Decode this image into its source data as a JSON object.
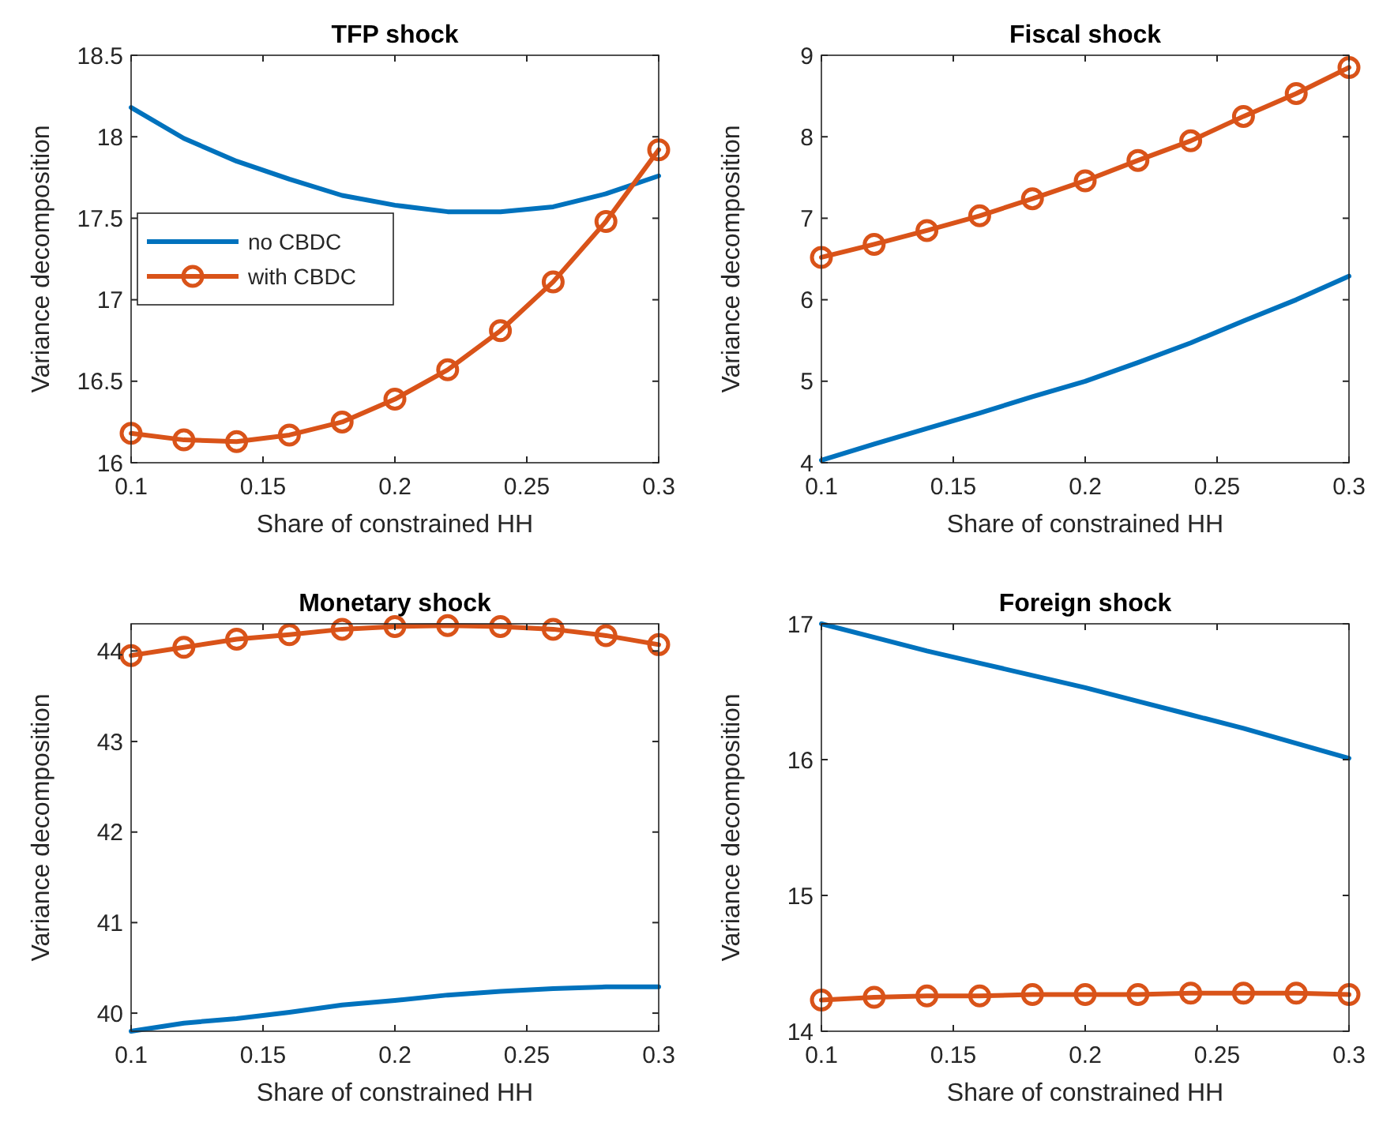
{
  "chart_data": [
    {
      "type": "line",
      "title": "TFP shock",
      "xlabel": "Share of constrained HH",
      "ylabel": "Variance decomposition",
      "x": [
        0.1,
        0.12,
        0.14,
        0.16,
        0.18,
        0.2,
        0.22,
        0.24,
        0.26,
        0.28,
        0.3
      ],
      "xlim": [
        0.1,
        0.3
      ],
      "xticks": [
        0.1,
        0.15,
        0.2,
        0.25,
        0.3
      ],
      "ylim": [
        16,
        18.5
      ],
      "yticks": [
        16,
        16.5,
        17,
        17.5,
        18,
        18.5
      ],
      "legend": "left",
      "series": [
        {
          "name": "no CBDC",
          "color": "#0072bd",
          "marker": "none",
          "values": [
            18.18,
            17.99,
            17.85,
            17.74,
            17.64,
            17.58,
            17.54,
            17.54,
            17.57,
            17.65,
            17.76
          ]
        },
        {
          "name": "with CBDC",
          "color": "#d95319",
          "marker": "circle",
          "values": [
            16.18,
            16.14,
            16.13,
            16.17,
            16.25,
            16.39,
            16.57,
            16.81,
            17.11,
            17.48,
            17.92
          ]
        }
      ]
    },
    {
      "type": "line",
      "title": "Fiscal shock",
      "xlabel": "Share of constrained HH",
      "ylabel": "Variance decomposition",
      "x": [
        0.1,
        0.12,
        0.14,
        0.16,
        0.18,
        0.2,
        0.22,
        0.24,
        0.26,
        0.28,
        0.3
      ],
      "xlim": [
        0.1,
        0.3
      ],
      "xticks": [
        0.1,
        0.15,
        0.2,
        0.25,
        0.3
      ],
      "ylim": [
        4,
        9
      ],
      "yticks": [
        4,
        5,
        6,
        7,
        8,
        9
      ],
      "series": [
        {
          "color": "#0072bd",
          "marker": "none",
          "values": [
            4.03,
            4.23,
            4.42,
            4.61,
            4.81,
            5.0,
            5.23,
            5.47,
            5.74,
            6.0,
            6.29
          ]
        },
        {
          "color": "#d95319",
          "marker": "circle",
          "values": [
            6.52,
            6.68,
            6.85,
            7.03,
            7.24,
            7.46,
            7.71,
            7.95,
            8.25,
            8.53,
            8.85
          ]
        }
      ]
    },
    {
      "type": "line",
      "title": "Monetary shock",
      "xlabel": "Share of constrained HH",
      "ylabel": "Variance decomposition",
      "x": [
        0.1,
        0.12,
        0.14,
        0.16,
        0.18,
        0.2,
        0.22,
        0.24,
        0.26,
        0.28,
        0.3
      ],
      "xlim": [
        0.1,
        0.3
      ],
      "xticks": [
        0.1,
        0.15,
        0.2,
        0.25,
        0.3
      ],
      "ylim": [
        39.8,
        44.3
      ],
      "yticks": [
        40,
        41,
        42,
        43,
        44
      ],
      "series": [
        {
          "color": "#0072bd",
          "marker": "none",
          "values": [
            39.8,
            39.89,
            39.94,
            40.01,
            40.09,
            40.14,
            40.2,
            40.24,
            40.27,
            40.29,
            40.29
          ]
        },
        {
          "color": "#d95319",
          "marker": "circle",
          "values": [
            43.95,
            44.04,
            44.13,
            44.18,
            44.24,
            44.27,
            44.28,
            44.27,
            44.24,
            44.17,
            44.07
          ]
        }
      ]
    },
    {
      "type": "line",
      "title": "Foreign shock",
      "xlabel": "Share of constrained HH",
      "ylabel": "Variance decomposition",
      "x": [
        0.1,
        0.12,
        0.14,
        0.16,
        0.18,
        0.2,
        0.22,
        0.24,
        0.26,
        0.28,
        0.3
      ],
      "xlim": [
        0.1,
        0.3
      ],
      "xticks": [
        0.1,
        0.15,
        0.2,
        0.25,
        0.3
      ],
      "ylim": [
        14,
        17
      ],
      "yticks": [
        14,
        15,
        16,
        17
      ],
      "series": [
        {
          "color": "#0072bd",
          "marker": "none",
          "values": [
            17.0,
            16.9,
            16.8,
            16.71,
            16.62,
            16.53,
            16.43,
            16.33,
            16.23,
            16.12,
            16.01
          ]
        },
        {
          "color": "#d95319",
          "marker": "circle",
          "values": [
            14.23,
            14.25,
            14.26,
            14.26,
            14.27,
            14.27,
            14.27,
            14.28,
            14.28,
            14.28,
            14.27
          ]
        }
      ]
    }
  ]
}
